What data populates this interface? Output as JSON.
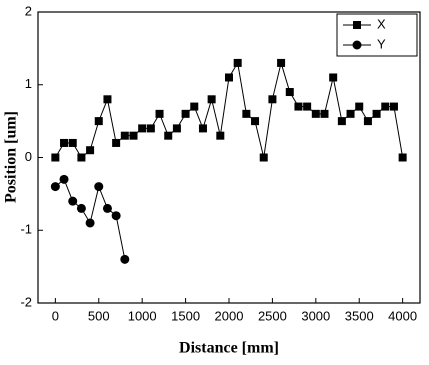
{
  "chart_data": {
    "type": "line",
    "x_label": "Distance [mm]",
    "y_label": "Position [um]",
    "x": [
      0,
      100,
      200,
      300,
      400,
      500,
      600,
      700,
      800,
      900,
      1000,
      1100,
      1200,
      1300,
      1400,
      1500,
      1600,
      1700,
      1800,
      1900,
      2000,
      2100,
      2200,
      2300,
      2400,
      2500,
      2600,
      2700,
      2800,
      2900,
      3000,
      3100,
      3200,
      3300,
      3400,
      3500,
      3600,
      3700,
      3800,
      3900,
      4000
    ],
    "series": [
      {
        "name": "X",
        "color": "#000000",
        "marker": "square",
        "values": [
          0,
          0.2,
          0.2,
          0,
          0.1,
          0.5,
          0.8,
          0.2,
          0.3,
          0.3,
          0.4,
          0.4,
          0.6,
          0.3,
          0.4,
          0.6,
          0.7,
          0.4,
          0.8,
          0.3,
          1.1,
          1.3,
          0.6,
          0.5,
          0,
          0.8,
          1.3,
          0.9,
          0.7,
          0.7,
          0.6,
          0.6,
          1.1,
          0.5,
          0.6,
          0.7,
          0.5,
          0.6,
          0.7,
          0.7,
          0
        ]
      },
      {
        "name": "Y",
        "color": "#000000",
        "marker": "circle",
        "values": [
          -0.4,
          -0.3,
          -0.6,
          -0.7,
          -0.9,
          -0.4,
          -0.7,
          -0.8,
          -1.4,
          null,
          null,
          null,
          null,
          null,
          null,
          null,
          null,
          null,
          null,
          null,
          null,
          null,
          null,
          null,
          null,
          null,
          null,
          null,
          null,
          null,
          null,
          null,
          null,
          null,
          null,
          null,
          null,
          null,
          null,
          null,
          null
        ]
      }
    ],
    "xlim": [
      -200,
      4200
    ],
    "xticks": [
      0,
      500,
      1000,
      1500,
      2000,
      2500,
      3000,
      3500,
      4000
    ],
    "ylim": [
      -2,
      2
    ],
    "yticks": [
      -2,
      -1,
      0,
      1,
      2
    ],
    "legend": "top-right"
  }
}
